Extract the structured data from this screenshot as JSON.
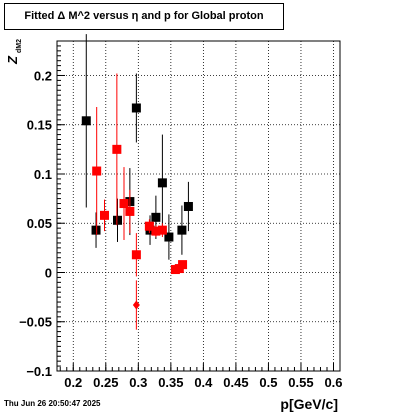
{
  "chart_data": {
    "type": "scatter",
    "title": "Fitted Δ M^2 versus η and p for Global proton",
    "xlabel": "p[GeV/c]",
    "ylabel": "Z",
    "ylabel_sub": "dM2",
    "xlim": [
      0.175,
      0.61
    ],
    "ylim": [
      -0.1,
      0.235
    ],
    "grid": true,
    "x_ticks": [
      0.2,
      0.25,
      0.3,
      0.35,
      0.4,
      0.45,
      0.5,
      0.55,
      0.6
    ],
    "x_tick_labels": [
      "0.2",
      "0.25",
      "0.3",
      "0.35",
      "0.4",
      "0.45",
      "0.5",
      "0.55",
      "0.6"
    ],
    "y_ticks": [
      -0.1,
      -0.05,
      0,
      0.05,
      0.1,
      0.15,
      0.2
    ],
    "y_tick_labels": [
      "−0.1",
      "−0.05",
      "0",
      "0.05",
      "0.1",
      "0.15",
      "0.2"
    ],
    "series": [
      {
        "color": "#000000",
        "marker": "square",
        "points": [
          {
            "x": 0.22,
            "y": 0.154,
            "err": 0.088
          },
          {
            "x": 0.235,
            "y": 0.043,
            "err": 0.018
          },
          {
            "x": 0.268,
            "y": 0.053,
            "err": 0.022
          },
          {
            "x": 0.287,
            "y": 0.072,
            "err": 0.034
          },
          {
            "x": 0.297,
            "y": 0.167,
            "err": 0.035
          },
          {
            "x": 0.318,
            "y": 0.043,
            "err": 0.015
          },
          {
            "x": 0.327,
            "y": 0.056,
            "err": 0.022
          },
          {
            "x": 0.337,
            "y": 0.091,
            "err": 0.049
          },
          {
            "x": 0.347,
            "y": 0.036,
            "err": 0.023
          },
          {
            "x": 0.367,
            "y": 0.043,
            "err": 0.025
          },
          {
            "x": 0.377,
            "y": 0.067,
            "err": 0.025
          }
        ]
      },
      {
        "color": "#ff0000",
        "marker": "square",
        "points": [
          {
            "x": 0.236,
            "y": 0.103,
            "err": 0.065
          },
          {
            "x": 0.248,
            "y": 0.058,
            "err": 0.016
          },
          {
            "x": 0.267,
            "y": 0.125,
            "err": 0.077
          },
          {
            "x": 0.278,
            "y": 0.07,
            "err": 0.037
          },
          {
            "x": 0.287,
            "y": 0.062,
            "err": 0.022
          },
          {
            "x": 0.297,
            "y": 0.018,
            "err": 0.022
          },
          {
            "x": 0.317,
            "y": 0.047,
            "err": 0.007
          },
          {
            "x": 0.327,
            "y": 0.042,
            "err": 0.006
          },
          {
            "x": 0.337,
            "y": 0.043,
            "err": 0.007
          },
          {
            "x": 0.357,
            "y": 0.003,
            "err": 0.003
          },
          {
            "x": 0.363,
            "y": 0.004,
            "err": 0.003
          },
          {
            "x": 0.368,
            "y": 0.008,
            "err": 0.003
          }
        ]
      },
      {
        "color": "#ff0000",
        "marker": "diamond",
        "points": [
          {
            "x": 0.297,
            "y": -0.033,
            "err": 0.025
          }
        ]
      }
    ]
  },
  "footer": {
    "timestamp": "Thu Jun 26 20:50:47 2025"
  }
}
